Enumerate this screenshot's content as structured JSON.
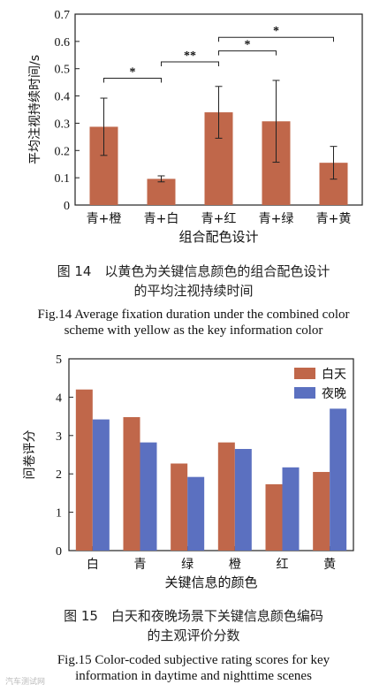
{
  "figure14": {
    "caption_cn_line1": "图 14　以黄色为关键信息颜色的组合配色设计",
    "caption_cn_line2": "的平均注视持续时间",
    "caption_en_line1": "Fig.14 Average fixation duration under the combined color",
    "caption_en_line2": "scheme with yellow as the key information color",
    "chart_data": {
      "type": "bar",
      "xlabel": "组合配色设计",
      "ylabel": "平均注视持续时间/s",
      "categories": [
        "青+橙",
        "青+白",
        "青+红",
        "青+绿",
        "青+黄"
      ],
      "values": [
        0.287,
        0.096,
        0.34,
        0.307,
        0.155
      ],
      "error": [
        0.105,
        0.011,
        0.095,
        0.15,
        0.06
      ],
      "ylim": [
        0,
        0.7
      ],
      "yticks": [
        "0",
        "0.1",
        "0.2",
        "0.3",
        "0.4",
        "0.5",
        "0.6",
        "0.7"
      ],
      "bar_color": "#c0674a",
      "significance": [
        {
          "from": 0,
          "to": 1,
          "label": "*"
        },
        {
          "from": 1,
          "to": 2,
          "label": "**"
        },
        {
          "from": 2,
          "to": 3,
          "label": "*"
        },
        {
          "from": 2,
          "to": 4,
          "label": "*"
        }
      ]
    }
  },
  "figure15": {
    "caption_cn_line1": "图 15　白天和夜晚场景下关键信息颜色编码",
    "caption_cn_line2": "的主观评价分数",
    "caption_en_line1": "Fig.15 Color-coded subjective rating scores for key",
    "caption_en_line2": "information in daytime and nighttime scenes",
    "chart_data": {
      "type": "bar",
      "xlabel": "关键信息的颜色",
      "ylabel": "问卷评分",
      "categories": [
        "白",
        "青",
        "绿",
        "橙",
        "红",
        "黄"
      ],
      "series": [
        {
          "name": "白天",
          "values": [
            4.2,
            3.48,
            2.27,
            2.82,
            1.73,
            2.05
          ],
          "color": "#c0674a"
        },
        {
          "name": "夜晚",
          "values": [
            3.42,
            2.82,
            1.92,
            2.65,
            2.17,
            3.7
          ],
          "color": "#5b70c0"
        }
      ],
      "ylim": [
        0,
        5
      ],
      "yticks": [
        "0",
        "1",
        "2",
        "3",
        "4",
        "5"
      ],
      "legend": "top-right"
    }
  },
  "watermark": "汽车测试网"
}
